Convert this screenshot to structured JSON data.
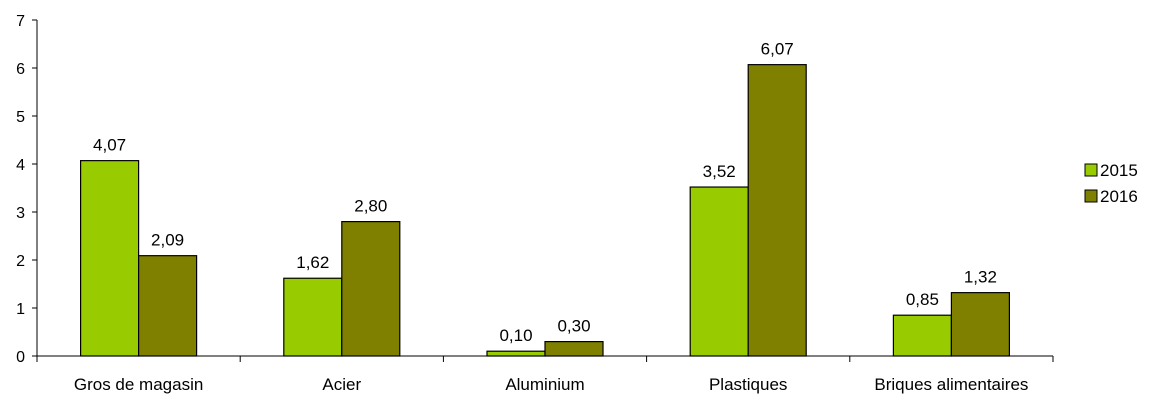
{
  "chart_data": {
    "type": "bar",
    "categories": [
      "Gros de magasin",
      "Acier",
      "Aluminium",
      "Plastiques",
      "Briques alimentaires"
    ],
    "series": [
      {
        "name": "2015",
        "values": [
          4.07,
          1.62,
          0.1,
          3.52,
          0.85
        ],
        "color": "#99cc00"
      },
      {
        "name": "2016",
        "values": [
          2.09,
          2.8,
          0.3,
          6.07,
          1.32
        ],
        "color": "#808000"
      }
    ],
    "data_labels": [
      [
        "4,07",
        "1,62",
        "0,10",
        "3,52",
        "0,85"
      ],
      [
        "2,09",
        "2,80",
        "0,30",
        "6,07",
        "1,32"
      ]
    ],
    "y_ticks": [
      "0",
      "1",
      "2",
      "3",
      "4",
      "5",
      "6",
      "7"
    ],
    "ylim": [
      0,
      7
    ],
    "grid": false,
    "legend_position": "right",
    "title": "",
    "xlabel": "",
    "ylabel": ""
  }
}
